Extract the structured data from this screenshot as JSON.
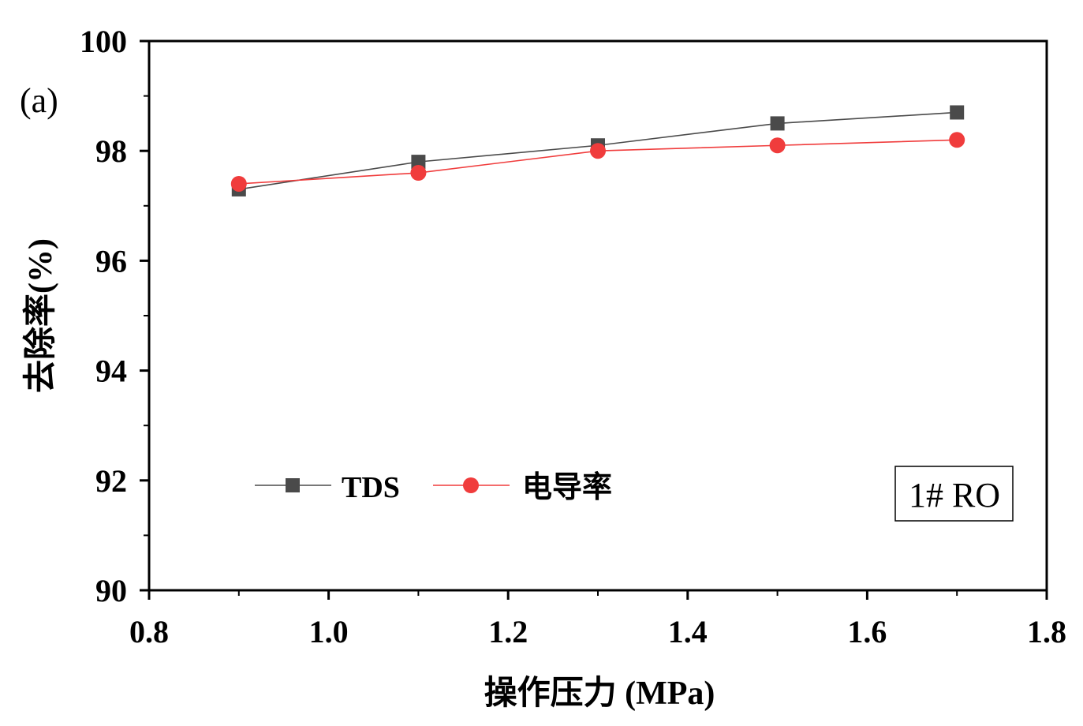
{
  "chart_data": {
    "type": "line",
    "panel_label": "(a)",
    "xlabel": "操作压力 (MPa)",
    "ylabel": "去除率(%)",
    "xlim": [
      0.8,
      1.8
    ],
    "ylim": [
      90,
      100
    ],
    "xticks": [
      "0.8",
      "1.0",
      "1.2",
      "1.4",
      "1.6",
      "1.8"
    ],
    "yticks": [
      "90",
      "92",
      "94",
      "96",
      "98",
      "100"
    ],
    "x": [
      0.9,
      1.1,
      1.3,
      1.5,
      1.7
    ],
    "series": [
      {
        "name": "TDS",
        "color": "#4a4a4a",
        "marker": "square",
        "values": [
          97.3,
          97.8,
          98.1,
          98.5,
          98.7
        ]
      },
      {
        "name": "电导率",
        "color": "#f03c3c",
        "marker": "circle",
        "values": [
          97.4,
          97.6,
          98.0,
          98.1,
          98.2
        ]
      }
    ],
    "annotation": "1# RO",
    "legend_position": "bottom-left",
    "grid": false
  }
}
